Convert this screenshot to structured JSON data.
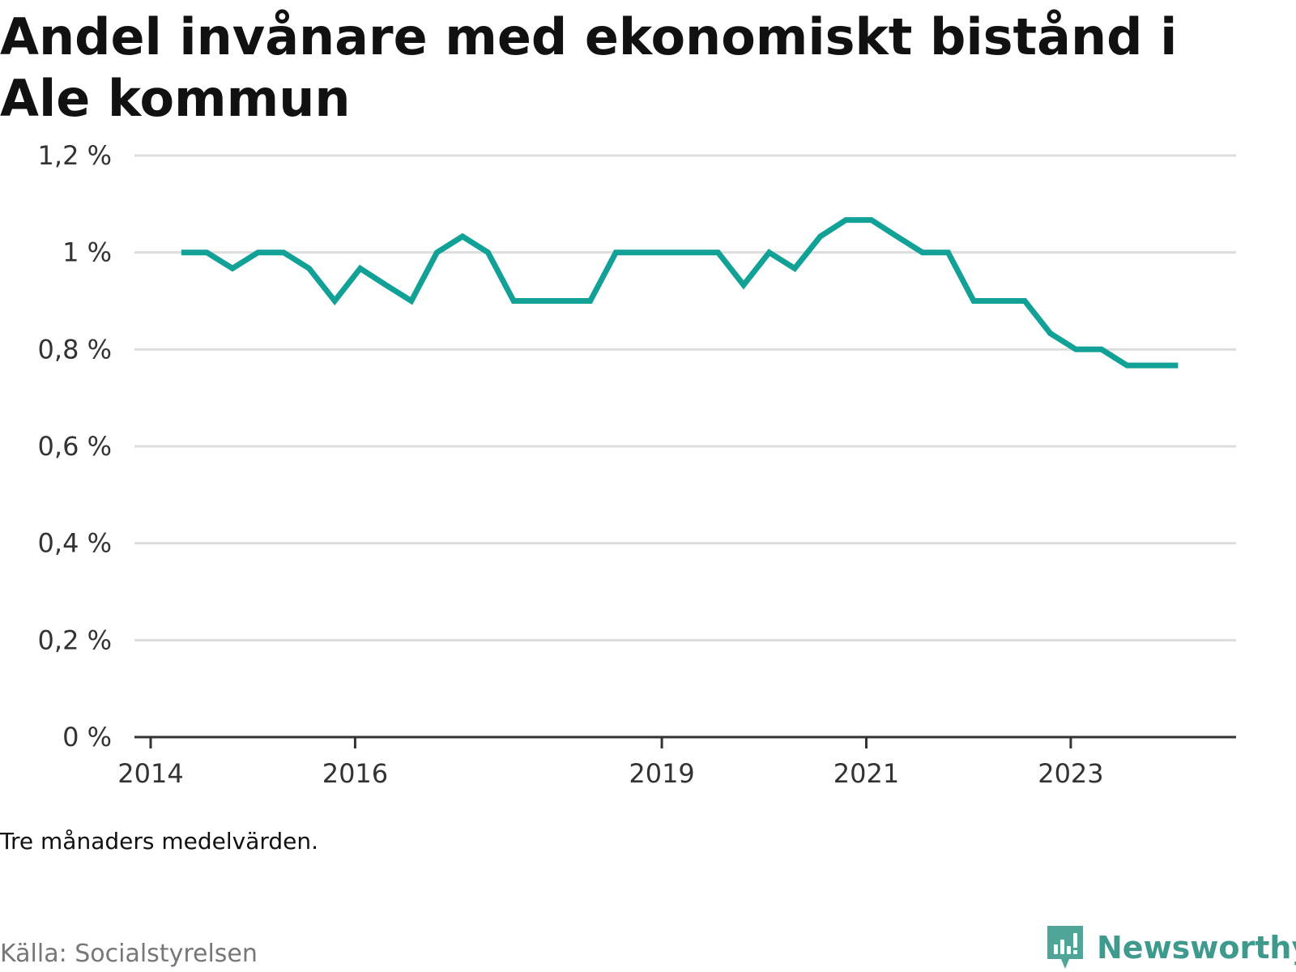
{
  "chart_data": {
    "type": "line",
    "title": "Andel invånare med ekonomiskt bistånd i Ale kommun",
    "note": "Tre månaders medelvärden.",
    "source": "Källa: Socialstyrelsen",
    "brand": "Newsworthy",
    "ylim": [
      0,
      1.2
    ],
    "yticks": [
      {
        "value": 0,
        "label": "0 %"
      },
      {
        "value": 0.2,
        "label": "0,2 %"
      },
      {
        "value": 0.4,
        "label": "0,4 %"
      },
      {
        "value": 0.6,
        "label": "0,6 %"
      },
      {
        "value": 0.8,
        "label": "0,8 %"
      },
      {
        "value": 1.0,
        "label": "1 %"
      },
      {
        "value": 1.2,
        "label": "1,2 %"
      }
    ],
    "xlim": [
      2014.0,
      2024.3
    ],
    "xticks": [
      {
        "value": 2014,
        "label": "2014"
      },
      {
        "value": 2016,
        "label": "2016"
      },
      {
        "value": 2019,
        "label": "2019"
      },
      {
        "value": 2021,
        "label": "2021"
      },
      {
        "value": 2023,
        "label": "2023"
      }
    ],
    "grid": true,
    "colors": {
      "line": "#12a197",
      "grid": "#dddddd",
      "axis": "#333333",
      "brand": "#3d9a8c"
    },
    "series": [
      {
        "name": "",
        "x": [
          2014.3,
          2014.55,
          2014.8,
          2015.05,
          2015.3,
          2015.55,
          2015.8,
          2016.05,
          2016.3,
          2016.55,
          2016.8,
          2017.05,
          2017.3,
          2017.55,
          2017.8,
          2018.05,
          2018.3,
          2018.55,
          2018.8,
          2019.05,
          2019.3,
          2019.55,
          2019.8,
          2020.05,
          2020.3,
          2020.55,
          2020.8,
          2021.05,
          2021.3,
          2021.55,
          2021.8,
          2022.05,
          2022.3,
          2022.55,
          2022.8,
          2023.05,
          2023.3,
          2023.55,
          2023.8,
          2024.05
        ],
        "values": [
          1.0,
          1.0,
          0.967,
          1.0,
          1.0,
          0.967,
          0.9,
          0.967,
          0.933,
          0.9,
          1.0,
          1.033,
          1.0,
          0.9,
          0.9,
          0.9,
          0.9,
          1.0,
          1.0,
          1.0,
          1.0,
          1.0,
          0.933,
          1.0,
          0.967,
          1.033,
          1.067,
          1.067,
          1.033,
          1.0,
          1.0,
          0.9,
          0.9,
          0.9,
          0.833,
          0.8,
          0.8,
          0.767,
          0.767,
          0.767
        ]
      }
    ]
  }
}
